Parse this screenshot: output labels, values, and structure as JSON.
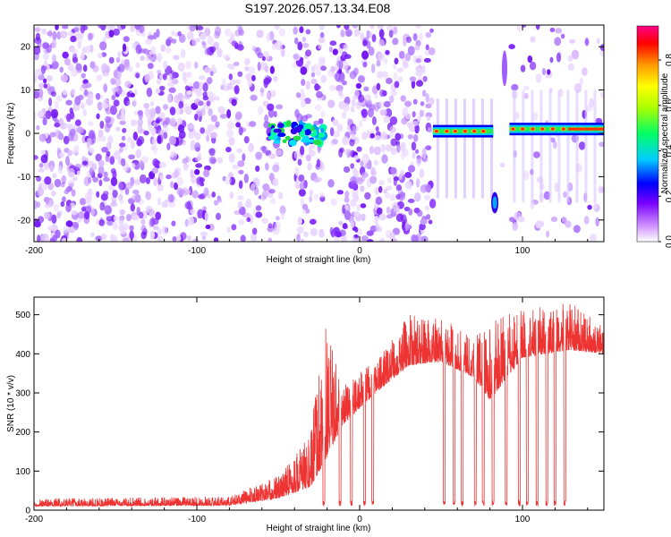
{
  "title": "S197.2026.057.13.34.E08",
  "chart_data": [
    {
      "type": "heatmap",
      "name": "spectrogram",
      "xlabel": "Height of straight line (km)",
      "ylabel": "Frequency (Hz)",
      "xlim": [
        -200,
        150
      ],
      "ylim": [
        -25,
        25
      ],
      "xticks": [
        -200,
        -100,
        0,
        100
      ],
      "xtick_labels": [
        "-200",
        "-100",
        "0",
        "100"
      ],
      "yticks": [
        -20,
        -10,
        0,
        10,
        20
      ],
      "ytick_labels": [
        "-20",
        "-10",
        "0",
        "10",
        "20"
      ],
      "gaps_km": [
        [
          -47,
          -40
        ],
        [
          -22,
          -18
        ],
        [
          45,
          87
        ],
        [
          89,
          92
        ]
      ],
      "tone_segments": [
        {
          "x_start": -55,
          "x_end": -22,
          "freq": 0,
          "amplitude": 0.25
        },
        {
          "x_start": 45,
          "x_end": 82,
          "freq": 0.5,
          "amplitude": 0.9
        },
        {
          "x_start": 92,
          "x_end": 150,
          "freq": 1,
          "amplitude": 0.9
        }
      ],
      "artifacts": [
        {
          "x": 83,
          "freq": -16,
          "amplitude": 0.3
        },
        {
          "x": 89,
          "freq": 15,
          "amplitude": 0.1
        }
      ],
      "colorbar": {
        "label": "Normalized spectral amplitude",
        "range": [
          0,
          0.95
        ],
        "ticks": [
          0,
          0.2,
          0.4,
          0.6,
          0.8
        ],
        "tick_labels": [
          "0.0",
          "0.2",
          "0.4",
          "0.6",
          "0.8"
        ]
      }
    },
    {
      "type": "line",
      "name": "snr",
      "xlabel": "Height of straight line (km)",
      "ylabel": "SNR (10 * v/v)",
      "xlim": [
        -200,
        150
      ],
      "ylim": [
        0,
        545
      ],
      "xticks": [
        -200,
        -100,
        0,
        100
      ],
      "xtick_labels": [
        "-200",
        "-100",
        "0",
        "100"
      ],
      "yticks": [
        0,
        100,
        200,
        300,
        400,
        500
      ],
      "ytick_labels": [
        "0",
        "100",
        "200",
        "300",
        "400",
        "500"
      ],
      "color": "#ee3333",
      "envelope": [
        {
          "x": -200,
          "baseline": 10,
          "peak": 30
        },
        {
          "x": -80,
          "baseline": 12,
          "peak": 35
        },
        {
          "x": -50,
          "baseline": 30,
          "peak": 90
        },
        {
          "x": -30,
          "baseline": 60,
          "peak": 200
        },
        {
          "x": -22,
          "baseline": 120,
          "peak": 480
        },
        {
          "x": -10,
          "baseline": 220,
          "peak": 330
        },
        {
          "x": 10,
          "baseline": 300,
          "peak": 380
        },
        {
          "x": 30,
          "baseline": 370,
          "peak": 500
        },
        {
          "x": 50,
          "baseline": 380,
          "peak": 490
        },
        {
          "x": 70,
          "baseline": 340,
          "peak": 450
        },
        {
          "x": 80,
          "baseline": 280,
          "peak": 480
        },
        {
          "x": 100,
          "baseline": 390,
          "peak": 520
        },
        {
          "x": 130,
          "baseline": 410,
          "peak": 530
        },
        {
          "x": 150,
          "baseline": 400,
          "peak": 470
        }
      ],
      "dropouts_km": [
        -22,
        -12,
        -5,
        3,
        8,
        52,
        58,
        63,
        71,
        76,
        82,
        90,
        98,
        103,
        109,
        115,
        120,
        126
      ]
    }
  ],
  "colors": {
    "background": "#ffffff",
    "snr_line": "#ee3333",
    "colormap": [
      "#ffffff",
      "#cc88ff",
      "#7700ff",
      "#0000ff",
      "#00ccff",
      "#00ff66",
      "#aaff00",
      "#ffff00",
      "#ff9900",
      "#ff0000",
      "#ff0088"
    ]
  }
}
